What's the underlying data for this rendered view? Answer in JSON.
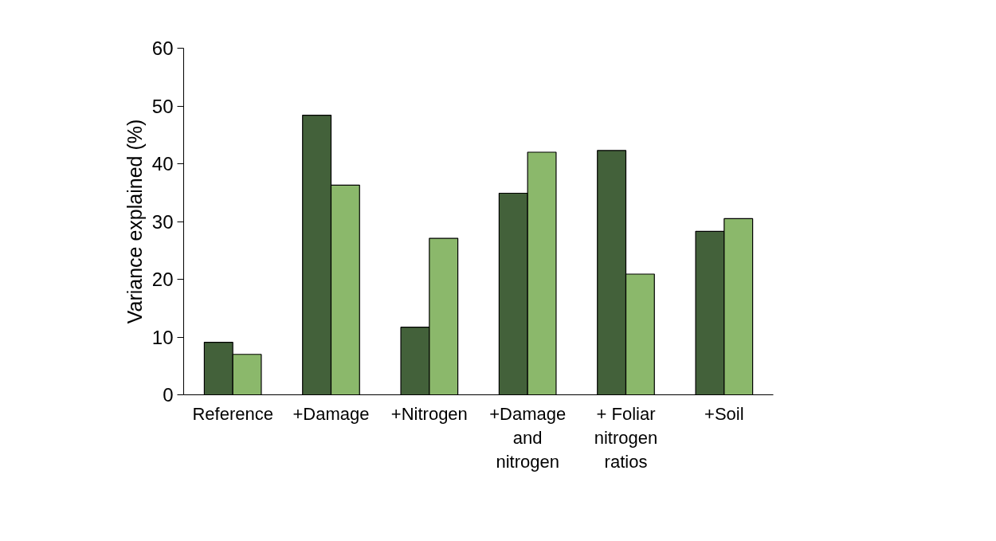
{
  "chart_data": {
    "type": "bar",
    "ylabel": "Variance explained (%)",
    "categories": [
      "Reference",
      "+Damage",
      "+Nitrogen",
      "+Damage and nitrogen",
      "+ Foliar nitrogen ratios",
      "+Soil"
    ],
    "series": [
      {
        "color": "#43613a",
        "values": [
          9.1,
          48.4,
          11.7,
          34.9,
          42.3,
          28.3
        ]
      },
      {
        "color": "#8bb86b",
        "values": [
          7.0,
          36.3,
          27.1,
          42.0,
          20.9,
          30.5
        ]
      }
    ],
    "ylim": [
      0,
      60
    ],
    "yticks": [
      0,
      10,
      20,
      30,
      40,
      50,
      60
    ],
    "grid": false
  }
}
